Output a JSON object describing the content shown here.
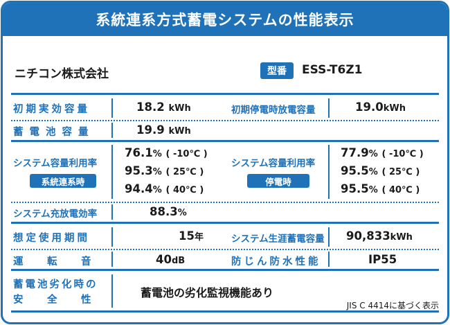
{
  "title": "系統連系方式蓄電システムの性能表示",
  "maker": "ニチコン株式会社",
  "model_badge": "型番",
  "model": "ESS-T6Z1",
  "rows": {
    "initial_capacity": {
      "label": "初期実効容量",
      "value": "18.2",
      "unit": "kWh"
    },
    "battery_capacity": {
      "label": "蓄電池容量",
      "value": "19.9",
      "unit": "kWh"
    },
    "outage_capacity": {
      "label": "初期停電時放電容量",
      "value": "19.0",
      "unit": "kWh"
    },
    "util_grid": {
      "label": "システム容量利用率",
      "tag": "系統連系時",
      "items": [
        {
          "value": "76.1",
          "unit": "%",
          "cond": "( -10℃ )"
        },
        {
          "value": "95.3",
          "unit": "%",
          "cond": "( 25℃ )"
        },
        {
          "value": "94.4",
          "unit": "%",
          "cond": "( 40℃ )"
        }
      ]
    },
    "util_outage": {
      "label": "システム容量利用率",
      "tag": "停電時",
      "items": [
        {
          "value": "77.9",
          "unit": "%",
          "cond": "( -10℃ )"
        },
        {
          "value": "95.5",
          "unit": "%",
          "cond": "( 25℃ )"
        },
        {
          "value": "95.5",
          "unit": "%",
          "cond": "( 40℃ )"
        }
      ]
    },
    "efficiency": {
      "label": "システム充放電効率",
      "value": "88.3",
      "unit": "%"
    },
    "lifetime": {
      "label": "想定使用期間",
      "value": "15",
      "unit": "年"
    },
    "lifetime_storage": {
      "label": "システム生涯蓄電容量",
      "value": "90,833",
      "unit": "kWh"
    },
    "noise": {
      "label": "運　転　音",
      "value": "40",
      "unit": "dB"
    },
    "waterproof": {
      "label": "防じん防水性能",
      "value": "IP55"
    },
    "safety": {
      "label_line1": "蓄電池劣化時の",
      "label_line2": "安　全　性",
      "value": "蓄電池の劣化監視機能あり"
    }
  },
  "footnote": "JIS C 4414に基づく表示"
}
